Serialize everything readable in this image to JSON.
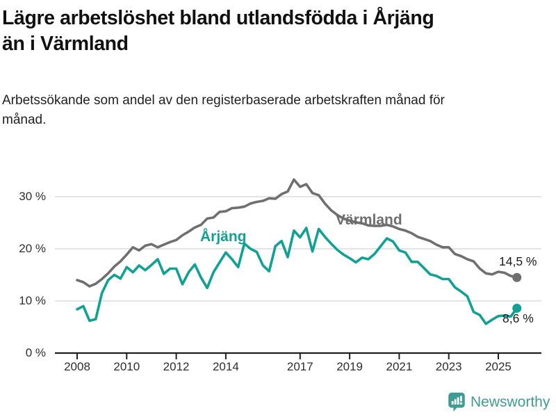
{
  "header": {
    "title_line1": "Lägre arbetslöshet bland utlandsfödda i Årjäng",
    "title_line2": "än i Värmland",
    "subtitle": "Arbetssökande som andel av den registerbaserade arbetskraften månad för månad."
  },
  "chart_data": {
    "type": "line",
    "x_start": 2008.0,
    "x_step_years": 0.25,
    "x_end": 2025.75,
    "grid": "horizontal-only",
    "x_axis": {
      "tick_labels": [
        "2008",
        "2010",
        "2012",
        "2014",
        "2017",
        "2019",
        "2021",
        "2023",
        "2025"
      ],
      "tick_years": [
        2008,
        2010,
        2012,
        2014,
        2017,
        2019,
        2021,
        2023,
        2025
      ]
    },
    "y_axis": {
      "tick_labels": [
        "30 %",
        "20 %",
        "10 %",
        "0 %"
      ],
      "tick_values": [
        30,
        20,
        10,
        0
      ],
      "unit": "%",
      "ylim": [
        0,
        34
      ]
    },
    "series": [
      {
        "name": "Värmland",
        "color": "#6F6F6F",
        "end_label": "14,5 %",
        "last_value": 14.5,
        "values": [
          14.0,
          13.6,
          12.8,
          13.3,
          14.2,
          15.3,
          16.6,
          17.6,
          18.9,
          20.3,
          19.7,
          20.6,
          20.9,
          20.3,
          20.8,
          21.3,
          21.7,
          22.6,
          23.3,
          24.1,
          24.6,
          25.8,
          26.0,
          27.1,
          27.2,
          27.8,
          27.9,
          28.1,
          28.7,
          29.0,
          29.2,
          29.7,
          29.6,
          30.5,
          31.0,
          33.3,
          31.9,
          32.4,
          30.7,
          30.3,
          28.7,
          27.4,
          26.5,
          25.8,
          25.4,
          25.1,
          24.9,
          24.5,
          24.4,
          24.4,
          24.6,
          24.3,
          23.8,
          23.5,
          23.0,
          22.3,
          21.9,
          21.5,
          20.8,
          20.3,
          20.3,
          19.0,
          18.6,
          18.0,
          17.6,
          16.2,
          15.3,
          15.1,
          15.6,
          15.4,
          14.8,
          14.5
        ]
      },
      {
        "name": "Årjäng",
        "color": "#10A195",
        "end_label": "8,6 %",
        "last_value": 8.6,
        "values": [
          8.4,
          9.0,
          6.2,
          6.5,
          11.5,
          14.0,
          15.0,
          14.3,
          16.5,
          15.5,
          16.8,
          15.9,
          16.9,
          18.0,
          15.2,
          16.2,
          16.2,
          13.2,
          15.5,
          17.0,
          14.5,
          12.5,
          15.5,
          17.4,
          19.3,
          18.0,
          16.5,
          21.0,
          20.0,
          19.4,
          16.8,
          15.7,
          20.5,
          21.5,
          18.4,
          23.5,
          22.2,
          24.0,
          19.5,
          23.8,
          22.3,
          21.0,
          19.8,
          18.9,
          18.2,
          17.4,
          18.3,
          18.0,
          19.0,
          20.5,
          22.0,
          21.4,
          19.7,
          19.3,
          17.5,
          17.5,
          16.3,
          15.1,
          14.8,
          14.2,
          14.2,
          12.6,
          11.8,
          10.9,
          7.9,
          7.3,
          5.6,
          6.4,
          7.1,
          7.2,
          7.0,
          8.6
        ]
      }
    ]
  },
  "annotations": {
    "varmland_series_label": "Värmland",
    "arjang_series_label": "Årjäng",
    "varmland_end_label": "14,5 %",
    "arjang_end_label": "8,6 %"
  },
  "footer": {
    "brand": "Newsworthy"
  },
  "colors": {
    "varmland_line": "#6F6F6F",
    "arjang_line": "#10A195",
    "grid": "#DCDCDC",
    "axis": "#1F1F1F",
    "tick_text": "#2E2E2E",
    "title_text": "#111111",
    "brand_teal": "#3F9C95",
    "background": "#FFFFFF"
  }
}
